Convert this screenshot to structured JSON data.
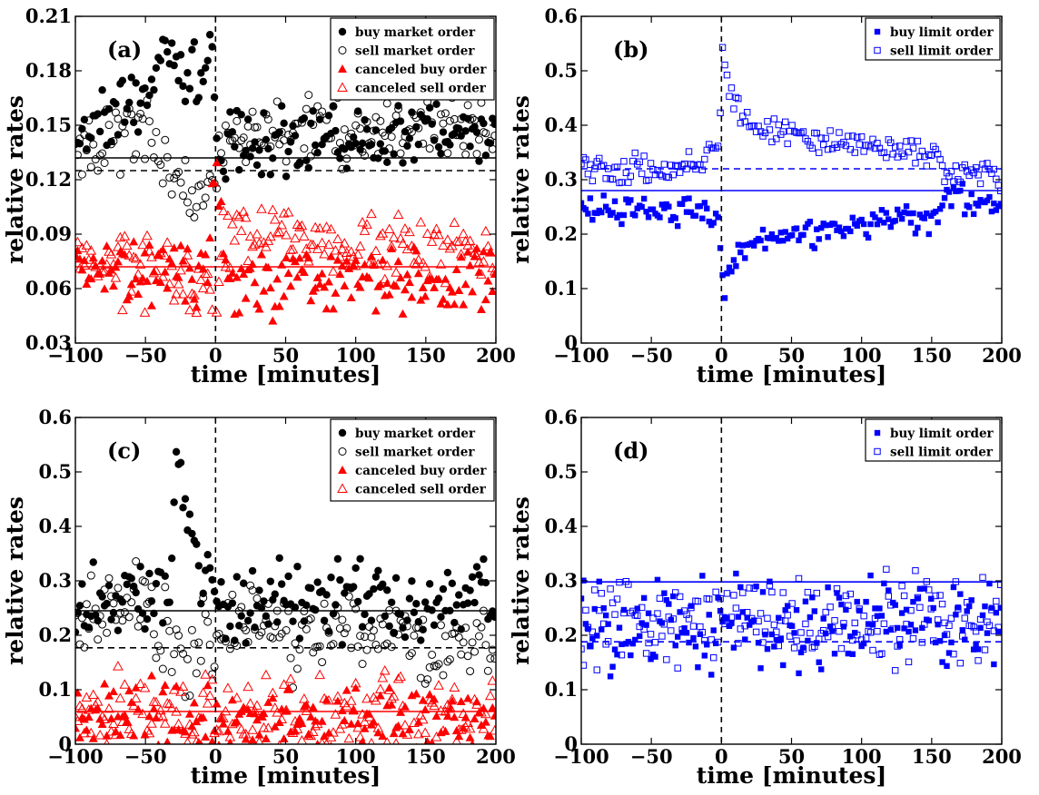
{
  "chart_data": [
    {
      "type": "scatter",
      "panel_label": "(a)",
      "xlabel": "time [minutes]",
      "ylabel": "relative rates",
      "xlim": [
        -100,
        200
      ],
      "ylim": [
        0.03,
        0.21
      ],
      "xticks": [
        -100,
        -50,
        0,
        50,
        100,
        150,
        200
      ],
      "yticks": [
        0.03,
        0.06,
        0.09,
        0.12,
        0.15,
        0.18,
        0.21
      ],
      "ytick_labels": [
        "0.03",
        "0.06",
        "0.09",
        "0.12",
        "0.15",
        "0.18",
        "0.21"
      ],
      "legend": [
        "buy market order",
        "sell market order",
        "canceled buy order",
        "canceled sell order"
      ],
      "legend_position": "top-right",
      "series": [
        {
          "name": "buy market order",
          "marker": "filled-circle",
          "color": "#000000",
          "approx": [
            [
              -95,
              0.142
            ],
            [
              -85,
              0.15
            ],
            [
              -75,
              0.158
            ],
            [
              -65,
              0.162
            ],
            [
              -55,
              0.16
            ],
            [
              -45,
              0.17
            ],
            [
              -40,
              0.188
            ],
            [
              -30,
              0.19
            ],
            [
              -20,
              0.18
            ],
            [
              -10,
              0.178
            ],
            [
              -2,
              0.19
            ],
            [
              2,
              0.125
            ],
            [
              10,
              0.14
            ],
            [
              25,
              0.14
            ],
            [
              50,
              0.142
            ],
            [
              75,
              0.14
            ],
            [
              100,
              0.142
            ],
            [
              125,
              0.143
            ],
            [
              150,
              0.145
            ],
            [
              175,
              0.148
            ],
            [
              200,
              0.15
            ]
          ]
        },
        {
          "name": "sell market order",
          "marker": "open-circle",
          "color": "#000000",
          "approx": [
            [
              -95,
              0.14
            ],
            [
              -80,
              0.14
            ],
            [
              -65,
              0.145
            ],
            [
              -50,
              0.15
            ],
            [
              -40,
              0.128
            ],
            [
              -30,
              0.12
            ],
            [
              -20,
              0.118
            ],
            [
              -10,
              0.112
            ],
            [
              -2,
              0.11
            ],
            [
              5,
              0.14
            ],
            [
              20,
              0.145
            ],
            [
              50,
              0.147
            ],
            [
              75,
              0.146
            ],
            [
              100,
              0.145
            ],
            [
              125,
              0.148
            ],
            [
              150,
              0.15
            ],
            [
              175,
              0.15
            ],
            [
              200,
              0.152
            ]
          ]
        },
        {
          "name": "canceled buy order",
          "marker": "filled-triangle",
          "color": "#ff0000",
          "approx": [
            [
              -95,
              0.07
            ],
            [
              -75,
              0.07
            ],
            [
              -50,
              0.066
            ],
            [
              -25,
              0.068
            ],
            [
              -5,
              0.072
            ],
            [
              0,
              0.13
            ],
            [
              10,
              0.062
            ],
            [
              25,
              0.062
            ],
            [
              50,
              0.064
            ],
            [
              75,
              0.065
            ],
            [
              100,
              0.066
            ],
            [
              125,
              0.066
            ],
            [
              150,
              0.066
            ],
            [
              175,
              0.067
            ],
            [
              200,
              0.066
            ]
          ]
        },
        {
          "name": "canceled sell order",
          "marker": "open-triangle",
          "color": "#ff0000",
          "approx": [
            [
              -95,
              0.075
            ],
            [
              -75,
              0.074
            ],
            [
              -50,
              0.072
            ],
            [
              -25,
              0.07
            ],
            [
              -5,
              0.06
            ],
            [
              0,
              0.033
            ],
            [
              5,
              0.095
            ],
            [
              25,
              0.092
            ],
            [
              50,
              0.088
            ],
            [
              75,
              0.085
            ],
            [
              100,
              0.082
            ],
            [
              125,
              0.08
            ],
            [
              150,
              0.08
            ],
            [
              175,
              0.08
            ],
            [
              200,
              0.08
            ]
          ]
        }
      ],
      "hlines": [
        {
          "y": 0.132,
          "style": "solid",
          "color": "#000000"
        },
        {
          "y": 0.125,
          "style": "dashed",
          "color": "#000000"
        },
        {
          "y": 0.072,
          "style": "solid",
          "color": "#ff0000"
        }
      ],
      "vline": {
        "x": 0,
        "style": "dashed"
      }
    },
    {
      "type": "scatter",
      "panel_label": "(b)",
      "xlabel": "time [minutes]",
      "ylabel": "relative rates",
      "xlim": [
        -100,
        200
      ],
      "ylim": [
        0,
        0.6
      ],
      "xticks": [
        -100,
        -50,
        0,
        50,
        100,
        150,
        200
      ],
      "yticks": [
        0,
        0.1,
        0.2,
        0.3,
        0.4,
        0.5,
        0.6
      ],
      "ytick_labels": [
        "0",
        "0.1",
        "0.2",
        "0.3",
        "0.4",
        "0.5",
        "0.6"
      ],
      "legend": [
        "buy limit order",
        "sell limit order"
      ],
      "legend_position": "top-right",
      "series": [
        {
          "name": "buy limit order",
          "marker": "filled-square",
          "color": "#0000ff",
          "approx": [
            [
              -95,
              0.25
            ],
            [
              -75,
              0.245
            ],
            [
              -50,
              0.25
            ],
            [
              -25,
              0.24
            ],
            [
              -10,
              0.23
            ],
            [
              -2,
              0.22
            ],
            [
              1,
              0.085
            ],
            [
              3,
              0.1
            ],
            [
              5,
              0.12
            ],
            [
              10,
              0.16
            ],
            [
              20,
              0.18
            ],
            [
              40,
              0.19
            ],
            [
              60,
              0.205
            ],
            [
              80,
              0.215
            ],
            [
              100,
              0.222
            ],
            [
              120,
              0.225
            ],
            [
              140,
              0.228
            ],
            [
              155,
              0.215
            ],
            [
              160,
              0.28
            ],
            [
              175,
              0.26
            ],
            [
              200,
              0.255
            ]
          ]
        },
        {
          "name": "sell limit order",
          "marker": "open-square",
          "color": "#0000ff",
          "approx": [
            [
              -95,
              0.32
            ],
            [
              -75,
              0.32
            ],
            [
              -50,
              0.315
            ],
            [
              -25,
              0.32
            ],
            [
              -10,
              0.345
            ],
            [
              -2,
              0.36
            ],
            [
              1,
              0.54
            ],
            [
              3,
              0.52
            ],
            [
              5,
              0.47
            ],
            [
              10,
              0.43
            ],
            [
              20,
              0.4
            ],
            [
              40,
              0.39
            ],
            [
              60,
              0.38
            ],
            [
              80,
              0.37
            ],
            [
              100,
              0.36
            ],
            [
              120,
              0.355
            ],
            [
              140,
              0.35
            ],
            [
              155,
              0.34
            ],
            [
              160,
              0.31
            ],
            [
              175,
              0.31
            ],
            [
              200,
              0.31
            ]
          ]
        }
      ],
      "hlines": [
        {
          "y": 0.32,
          "style": "dashed",
          "color": "#0000ff"
        },
        {
          "y": 0.28,
          "style": "solid",
          "color": "#0000ff"
        }
      ],
      "vline": {
        "x": 0,
        "style": "dashed"
      }
    },
    {
      "type": "scatter",
      "panel_label": "(c)",
      "xlabel": "time [minutes]",
      "ylabel": "relative rates",
      "xlim": [
        -100,
        200
      ],
      "ylim": [
        0,
        0.6
      ],
      "xticks": [
        -100,
        -50,
        0,
        50,
        100,
        150,
        200
      ],
      "yticks": [
        0,
        0.1,
        0.2,
        0.3,
        0.4,
        0.5,
        0.6
      ],
      "ytick_labels": [
        "0",
        "0.1",
        "0.2",
        "0.3",
        "0.4",
        "0.5",
        "0.6"
      ],
      "legend": [
        "buy market order",
        "sell market order",
        "canceled buy order",
        "canceled sell order"
      ],
      "legend_position": "top-right",
      "series": [
        {
          "name": "buy market order",
          "marker": "filled-circle",
          "color": "#000000",
          "approx": [
            [
              -95,
              0.25
            ],
            [
              -75,
              0.26
            ],
            [
              -50,
              0.28
            ],
            [
              -30,
              0.32
            ],
            [
              -28,
              0.555
            ],
            [
              -10,
              0.3
            ],
            [
              0,
              0.28
            ],
            [
              10,
              0.24
            ],
            [
              25,
              0.24
            ],
            [
              50,
              0.26
            ],
            [
              75,
              0.26
            ],
            [
              100,
              0.27
            ],
            [
              125,
              0.26
            ],
            [
              150,
              0.26
            ],
            [
              175,
              0.26
            ],
            [
              200,
              0.25
            ]
          ]
        },
        {
          "name": "sell market order",
          "marker": "open-circle",
          "color": "#000000",
          "approx": [
            [
              -95,
              0.22
            ],
            [
              -75,
              0.24
            ],
            [
              -50,
              0.26
            ],
            [
              -40,
              0.2
            ],
            [
              -20,
              0.18
            ],
            [
              0,
              0.2
            ],
            [
              10,
              0.22
            ],
            [
              25,
              0.21
            ],
            [
              50,
              0.2
            ],
            [
              75,
              0.2
            ],
            [
              100,
              0.2
            ],
            [
              125,
              0.2
            ],
            [
              150,
              0.19
            ],
            [
              175,
              0.18
            ],
            [
              200,
              0.18
            ]
          ]
        },
        {
          "name": "canceled buy order",
          "marker": "filled-triangle",
          "color": "#ff0000",
          "approx": [
            [
              -95,
              0.04
            ],
            [
              -75,
              0.04
            ],
            [
              -50,
              0.04
            ],
            [
              -25,
              0.04
            ],
            [
              0,
              0.03
            ],
            [
              25,
              0.04
            ],
            [
              50,
              0.04
            ],
            [
              75,
              0.04
            ],
            [
              100,
              0.04
            ],
            [
              125,
              0.04
            ],
            [
              150,
              0.04
            ],
            [
              175,
              0.04
            ],
            [
              200,
              0.04
            ]
          ]
        },
        {
          "name": "canceled sell order",
          "marker": "open-triangle",
          "color": "#ff0000",
          "approx": [
            [
              -95,
              0.05
            ],
            [
              -75,
              0.05
            ],
            [
              -50,
              0.05
            ],
            [
              -25,
              0.05
            ],
            [
              0,
              0.04
            ],
            [
              25,
              0.05
            ],
            [
              50,
              0.05
            ],
            [
              75,
              0.05
            ],
            [
              100,
              0.05
            ],
            [
              125,
              0.05
            ],
            [
              150,
              0.05
            ],
            [
              175,
              0.05
            ],
            [
              200,
              0.05
            ]
          ]
        }
      ],
      "hlines": [
        {
          "y": 0.245,
          "style": "solid",
          "color": "#000000"
        },
        {
          "y": 0.177,
          "style": "dashed",
          "color": "#000000"
        },
        {
          "y": 0.06,
          "style": "solid",
          "color": "#ff0000"
        }
      ],
      "vline": {
        "x": 0,
        "style": "dashed"
      }
    },
    {
      "type": "scatter",
      "panel_label": "(d)",
      "xlabel": "time [minutes]",
      "ylabel": "relative rates",
      "xlim": [
        -100,
        200
      ],
      "ylim": [
        0,
        0.6
      ],
      "xticks": [
        -100,
        -50,
        0,
        50,
        100,
        150,
        200
      ],
      "yticks": [
        0,
        0.1,
        0.2,
        0.3,
        0.4,
        0.5,
        0.6
      ],
      "ytick_labels": [
        "0",
        "0.1",
        "0.2",
        "0.3",
        "0.4",
        "0.5",
        "0.6"
      ],
      "legend": [
        "buy limit order",
        "sell limit order"
      ],
      "legend_position": "top-right",
      "series": [
        {
          "name": "buy limit order",
          "marker": "filled-square",
          "color": "#0000ff",
          "approx": [
            [
              -95,
              0.22
            ],
            [
              -75,
              0.22
            ],
            [
              -50,
              0.21
            ],
            [
              -25,
              0.22
            ],
            [
              0,
              0.2
            ],
            [
              25,
              0.22
            ],
            [
              50,
              0.22
            ],
            [
              75,
              0.22
            ],
            [
              100,
              0.22
            ],
            [
              125,
              0.23
            ],
            [
              150,
              0.23
            ],
            [
              175,
              0.22
            ],
            [
              200,
              0.22
            ]
          ]
        },
        {
          "name": "sell limit order",
          "marker": "open-square",
          "color": "#0000ff",
          "approx": [
            [
              -95,
              0.22
            ],
            [
              -75,
              0.23
            ],
            [
              -50,
              0.22
            ],
            [
              -25,
              0.22
            ],
            [
              0,
              0.23
            ],
            [
              25,
              0.23
            ],
            [
              50,
              0.22
            ],
            [
              75,
              0.22
            ],
            [
              100,
              0.22
            ],
            [
              125,
              0.22
            ],
            [
              150,
              0.22
            ],
            [
              175,
              0.22
            ],
            [
              200,
              0.22
            ]
          ]
        }
      ],
      "hlines": [
        {
          "y": 0.298,
          "style": "solid",
          "color": "#0000ff"
        },
        {
          "y": 0.188,
          "style": "dashed",
          "color": "#0000ff"
        }
      ],
      "vline": {
        "x": 0,
        "style": "dashed"
      }
    }
  ]
}
